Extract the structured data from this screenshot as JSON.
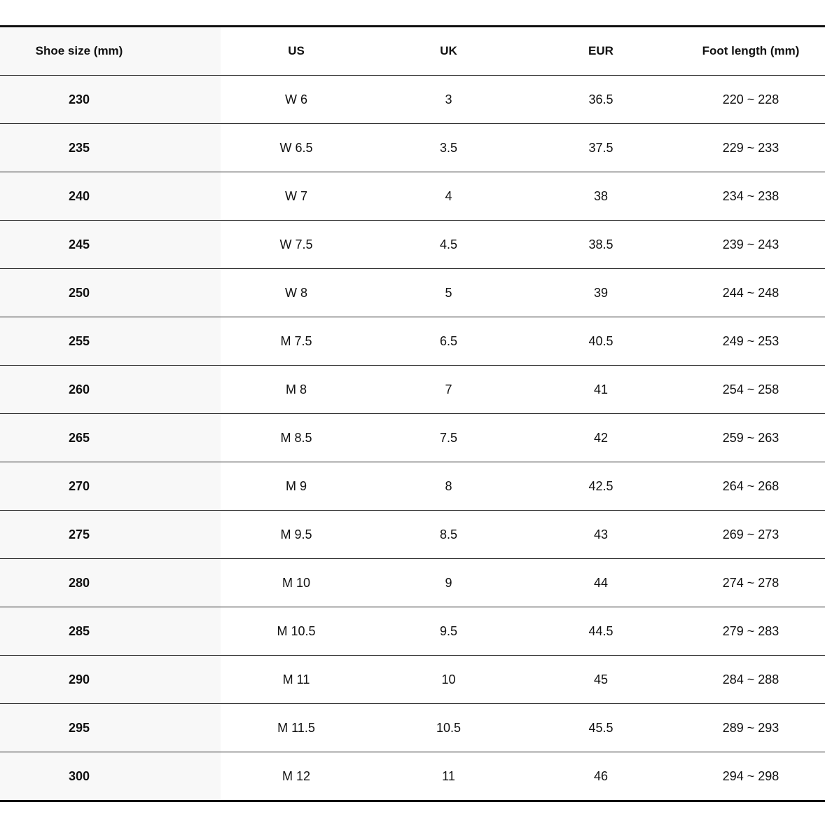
{
  "table": {
    "headers": [
      "Shoe size (mm)",
      "US",
      "UK",
      "EUR",
      "Foot length (mm)"
    ],
    "rows": [
      [
        "230",
        "W 6",
        "3",
        "36.5",
        "220 ~ 228"
      ],
      [
        "235",
        "W 6.5",
        "3.5",
        "37.5",
        "229 ~ 233"
      ],
      [
        "240",
        "W 7",
        "4",
        "38",
        "234 ~ 238"
      ],
      [
        "245",
        "W 7.5",
        "4.5",
        "38.5",
        "239 ~ 243"
      ],
      [
        "250",
        "W 8",
        "5",
        "39",
        "244 ~ 248"
      ],
      [
        "255",
        "M 7.5",
        "6.5",
        "40.5",
        "249 ~ 253"
      ],
      [
        "260",
        "M 8",
        "7",
        "41",
        "254 ~ 258"
      ],
      [
        "265",
        "M 8.5",
        "7.5",
        "42",
        "259 ~ 263"
      ],
      [
        "270",
        "M 9",
        "8",
        "42.5",
        "264 ~ 268"
      ],
      [
        "275",
        "M 9.5",
        "8.5",
        "43",
        "269 ~ 273"
      ],
      [
        "280",
        "M 10",
        "9",
        "44",
        "274 ~ 278"
      ],
      [
        "285",
        "M 10.5",
        "9.5",
        "44.5",
        "279 ~ 283"
      ],
      [
        "290",
        "M 11",
        "10",
        "45",
        "284 ~ 288"
      ],
      [
        "295",
        "M 11.5",
        "10.5",
        "45.5",
        "289 ~ 293"
      ],
      [
        "300",
        "M 12",
        "11",
        "46",
        "294 ~ 298"
      ]
    ]
  }
}
